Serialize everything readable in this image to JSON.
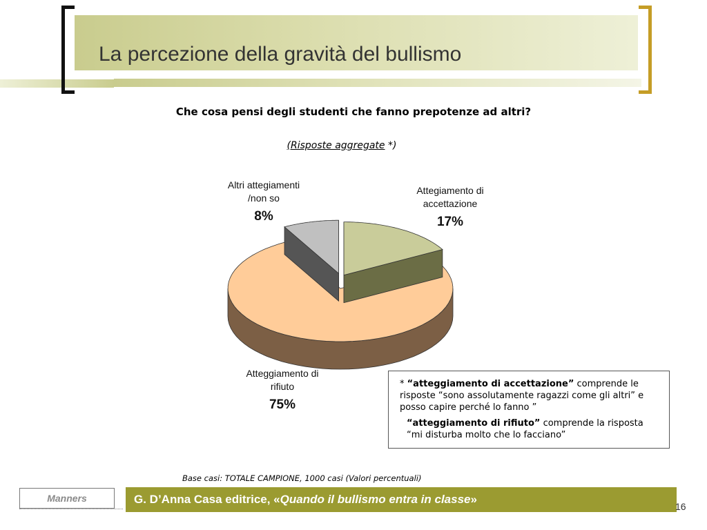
{
  "slide": {
    "title": "La percezione della gravità del bullismo",
    "question": "Che cosa pensi degli studenti che fanno prepotenze ad altri?",
    "subtitle_underlined": "(Risposte aggregate",
    "subtitle_rest": " *)",
    "base_note": "Base casi: TOTALE CAMPIONE, 1000 casi (Valori percentuali)",
    "page_number": "16"
  },
  "note_box": {
    "line1_prefix": "* ",
    "line1_bold": "“atteggiamento di accettazione”",
    "line1_rest": " comprende le risposte “sono assolutamente ragazzi come gli altri” e posso capire perché lo fanno ”",
    "line2_bold": "“atteggiamento di rifiuto”",
    "line2_rest": " comprende la risposta “mi disturba molto che lo facciano”"
  },
  "footer": {
    "manners": "Manners",
    "credit_prefix": "G. D’Anna Casa editrice, «",
    "credit_italic": "Quando il bullismo entra in classe",
    "credit_suffix": "»"
  },
  "chart_data": {
    "type": "pie",
    "title": "",
    "slices": [
      {
        "label": "Attegiamento di accettazione",
        "value": 17,
        "value_label": "17%",
        "color": "#c9cc9a",
        "side_color": "#6b6d45",
        "exploded": true
      },
      {
        "label": "Atteggiamento di rifiuto",
        "value": 75,
        "value_label": "75%",
        "color": "#ffcc99",
        "side_color": "#7c5f45",
        "exploded": false
      },
      {
        "label": "Altri attegiamenti /non so",
        "value": 8,
        "value_label": "8%",
        "color": "#c0c0c0",
        "side_color": "#555555",
        "exploded": true
      }
    ],
    "start": "12 o'clock, clockwise",
    "style": "3D exploded pie"
  }
}
